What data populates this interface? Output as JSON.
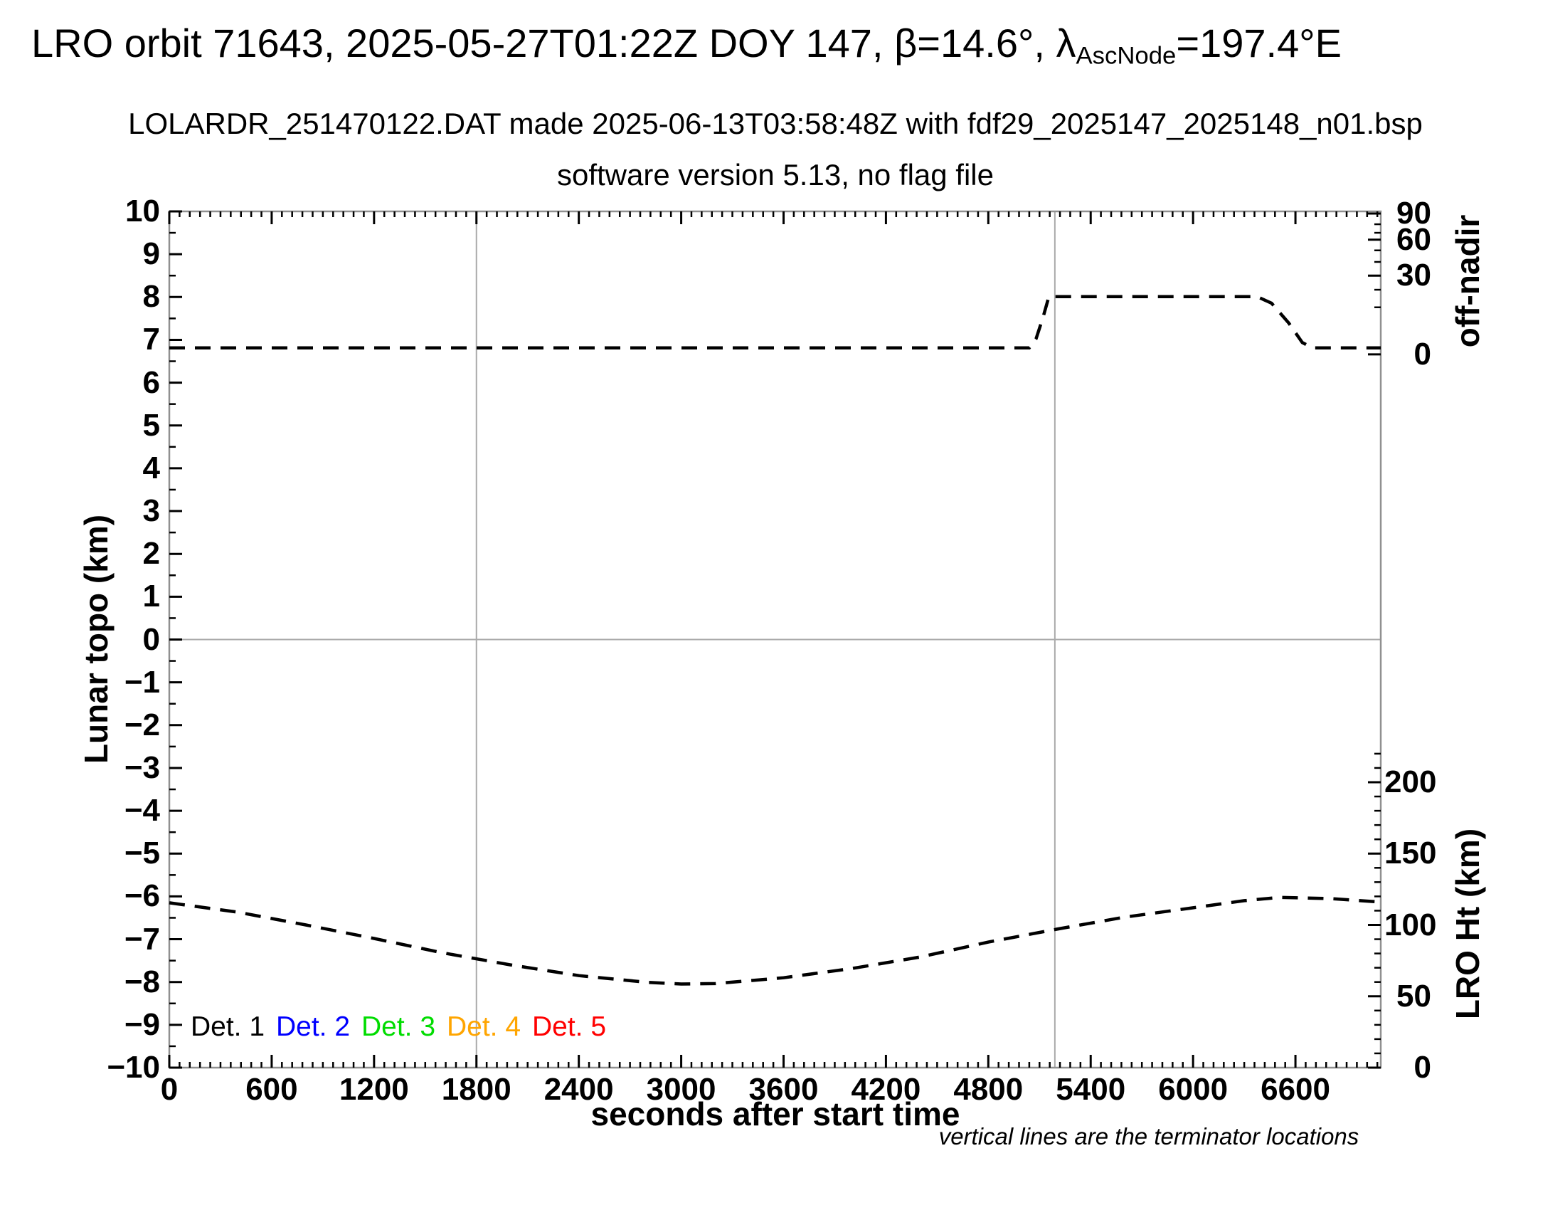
{
  "header": {
    "title_prefix": "LRO orbit 71643, 2025-05-27T01:22Z DOY 147, β=14.6°, λ",
    "title_subscript": "AscNode",
    "title_suffix": "=197.4°E",
    "subtitle": "LOLARDR_251470122.DAT made 2025-06-13T03:58:48Z with fdf29_2025147_2025148_n01.bsp",
    "subtitle2": "software version 5.13, no flag file"
  },
  "footnote": "vertical lines are the terminator locations",
  "legend": {
    "items": [
      {
        "label": "Det. 1",
        "color": "#000000"
      },
      {
        "label": "Det. 2",
        "color": "#0000ff"
      },
      {
        "label": "Det. 3",
        "color": "#00dc00"
      },
      {
        "label": "Det. 4",
        "color": "#ffa500"
      },
      {
        "label": "Det. 5",
        "color": "#ff0000"
      }
    ]
  },
  "chart_data": {
    "type": "line",
    "title": "LRO orbit 71643, 2025-05-27T01:22Z DOY 147, beta=14.6deg, lambda_AscNode=197.4degE",
    "x_axis": {
      "label": "seconds after start time",
      "min": 0,
      "max": 7100,
      "tick_values": [
        0,
        600,
        1200,
        1800,
        2400,
        3000,
        3600,
        4200,
        4800,
        5400,
        6000,
        6600
      ],
      "tick_labels": [
        "0",
        "600",
        "1200",
        "1800",
        "2400",
        "3000",
        "3600",
        "4200",
        "4800",
        "5400",
        "6000",
        "6600"
      ],
      "minor_step": 60
    },
    "y_left": {
      "label": "Lunar topo (km)",
      "min": -10,
      "max": 10,
      "tick_values": [
        10,
        9,
        8,
        7,
        6,
        5,
        4,
        3,
        2,
        1,
        0,
        -1,
        -2,
        -3,
        -4,
        -5,
        -6,
        -7,
        -8,
        -9,
        -10
      ],
      "tick_labels": [
        "10",
        "9",
        "8",
        "7",
        "6",
        "5",
        "4",
        "3",
        "2",
        "1",
        "0",
        "−1",
        "−2",
        "−3",
        "−4",
        "−5",
        "−6",
        "−7",
        "−8",
        "−9",
        "−10"
      ],
      "minor_step": 0.5,
      "zero_gridline": true
    },
    "y_right_offnadir": {
      "label": "off-nadir",
      "tick_values": [
        90,
        60,
        30,
        0
      ],
      "tick_labels": [
        "90",
        "60",
        "30",
        "0"
      ],
      "tick_topo": [
        9.95,
        9.34,
        8.5,
        6.66
      ],
      "minor_topo": [
        9.7,
        9.5,
        9.09,
        8.82,
        8.17,
        7.76
      ],
      "scale": "nonlinear"
    },
    "y_right_ht": {
      "label": "LRO Ht (km)",
      "tick_values": [
        200,
        150,
        100,
        50,
        0
      ],
      "tick_labels": [
        "200",
        "150",
        "100",
        "50",
        "0"
      ],
      "km_per_topo_unit": 30,
      "km_at_bottom": 0,
      "minor_km_step": 10,
      "minor_km_max": 220
    },
    "terminator_lines_s": [
      1800,
      5190
    ],
    "series": [
      {
        "name": "off-nadir angle (deg)",
        "axis": "offnadir",
        "style": "dashed",
        "color": "#000000",
        "points": [
          [
            0,
            2.5
          ],
          [
            5040,
            2.5
          ],
          [
            5080,
            6
          ],
          [
            5120,
            14
          ],
          [
            5155,
            22
          ],
          [
            6375,
            22
          ],
          [
            6460,
            19.5
          ],
          [
            6560,
            12
          ],
          [
            6640,
            4.5
          ],
          [
            6700,
            2.5
          ],
          [
            7100,
            2.5
          ]
        ]
      },
      {
        "name": "LRO height (km)",
        "axis": "ht",
        "style": "dashed",
        "color": "#000000",
        "points": [
          [
            0,
            115.5
          ],
          [
            400,
            109
          ],
          [
            800,
            100
          ],
          [
            1200,
            90.5
          ],
          [
            1600,
            80.5
          ],
          [
            2000,
            72
          ],
          [
            2400,
            64.5
          ],
          [
            2800,
            59.8
          ],
          [
            3000,
            58.6
          ],
          [
            3200,
            58.9
          ],
          [
            3600,
            63
          ],
          [
            4000,
            69.5
          ],
          [
            4400,
            77.5
          ],
          [
            4800,
            88
          ],
          [
            5200,
            97
          ],
          [
            5600,
            105.5
          ],
          [
            6000,
            112
          ],
          [
            6300,
            117
          ],
          [
            6510,
            119.3
          ],
          [
            6800,
            118.5
          ],
          [
            7100,
            116
          ]
        ]
      }
    ],
    "layout": {
      "grid": "off",
      "legend_position": "inside bottom-left",
      "frame_color": "#909090",
      "terminator_line_color": "#aaaaaa"
    }
  }
}
